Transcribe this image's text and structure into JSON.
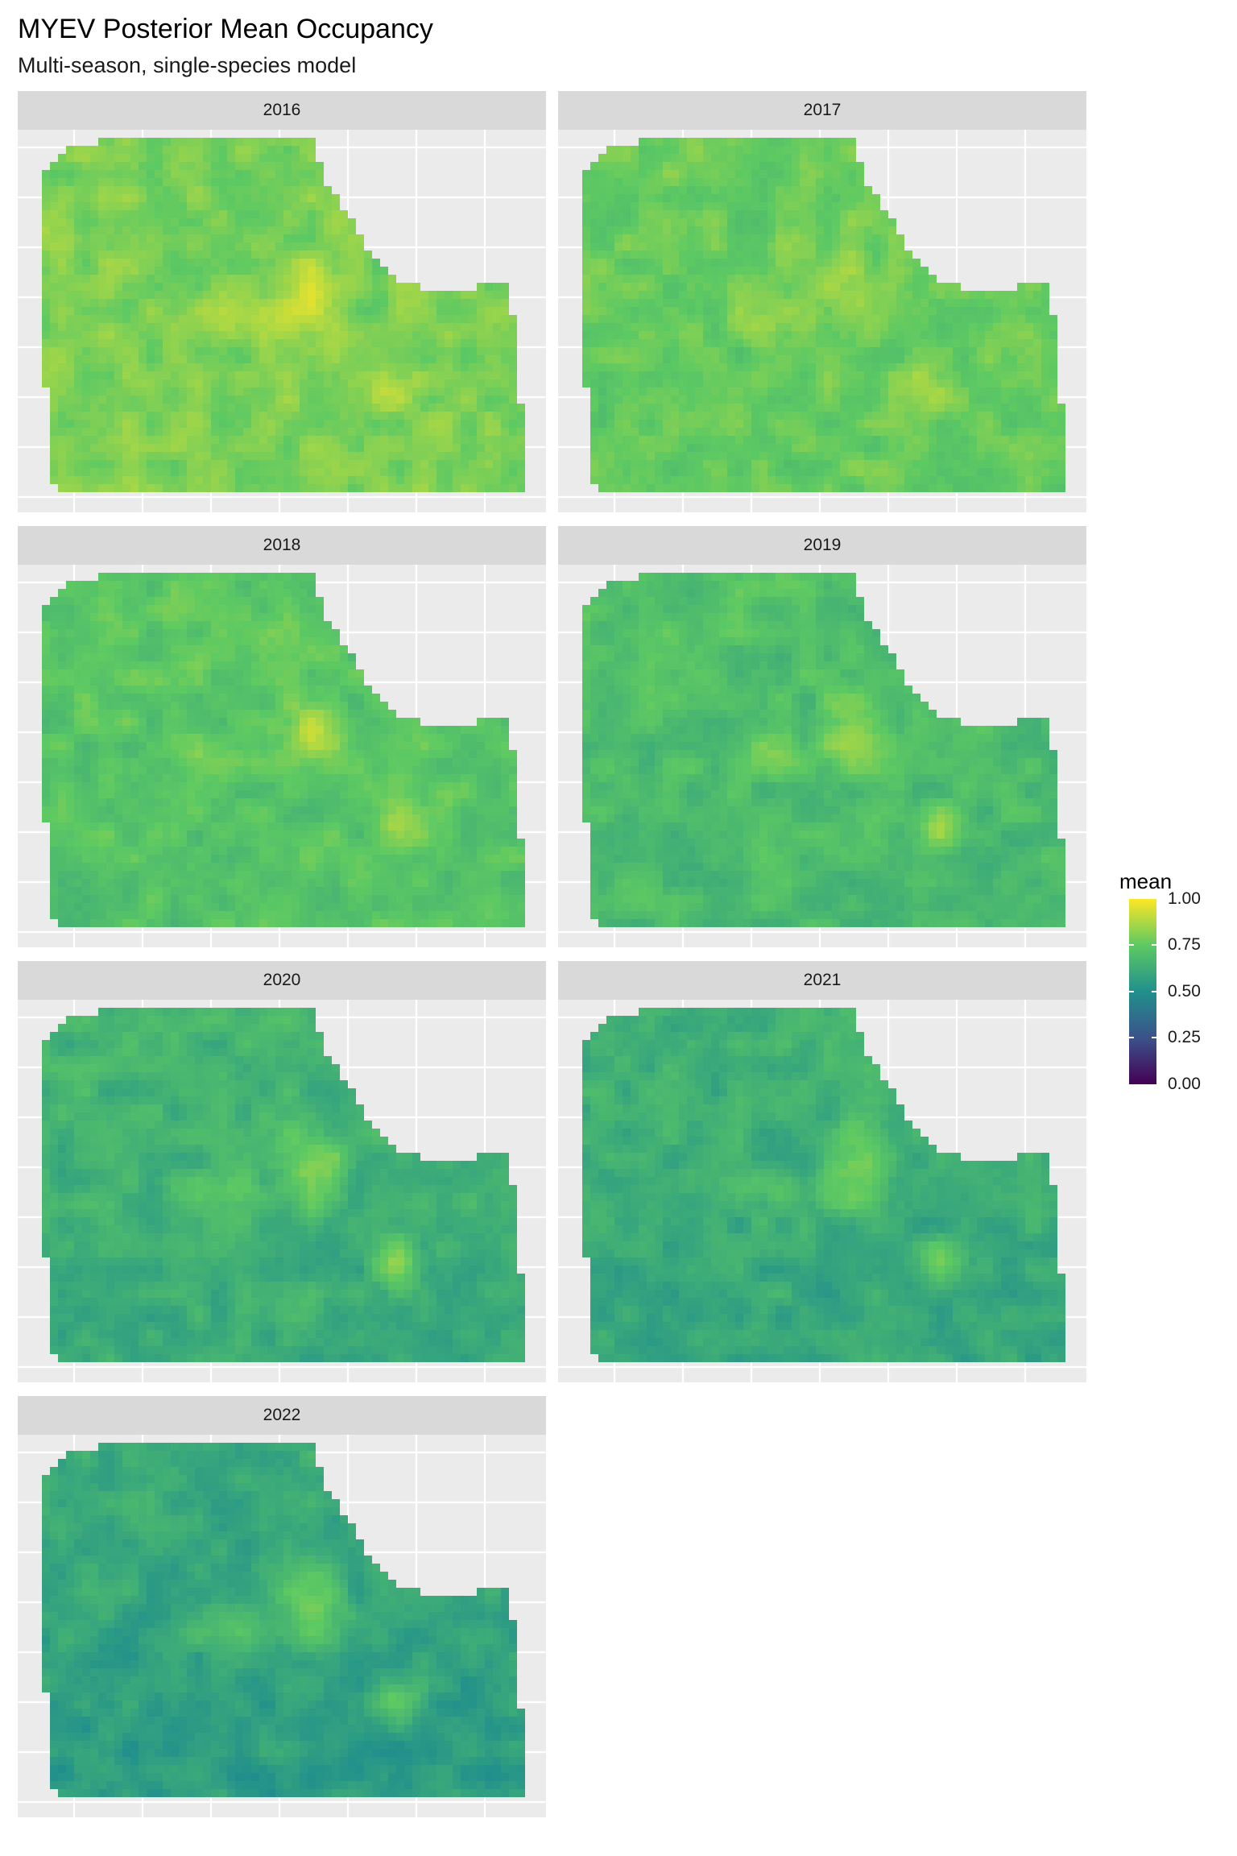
{
  "figure": {
    "title": "MYEV Posterior Mean Occupancy",
    "subtitle": "Multi-season, single-species model"
  },
  "chart_data": {
    "type": "heatmap",
    "title": "MYEV Posterior Mean Occupancy",
    "subtitle": "Multi-season, single-species model",
    "xlabel": "",
    "ylabel": "",
    "facets": [
      "2016",
      "2017",
      "2018",
      "2019",
      "2020",
      "2021",
      "2022"
    ],
    "fill_variable": "mean",
    "fill_scale": "viridis",
    "fill_range": [
      0,
      1
    ],
    "panel_mean_occupancy": [
      0.8,
      0.77,
      0.74,
      0.71,
      0.66,
      0.65,
      0.62
    ],
    "hotspot_occupancy": [
      0.95,
      0.92,
      0.92,
      0.9,
      0.9,
      0.89,
      0.88
    ],
    "grid": true,
    "axis_tick_labels_visible": false,
    "legend": {
      "title": "mean",
      "placement": "right",
      "ticks": [
        "1.00",
        "0.75",
        "0.50",
        "0.25",
        "0.00"
      ],
      "tick_values": [
        1.0,
        0.75,
        0.5,
        0.25,
        0.0
      ]
    },
    "colors": {
      "panel_background": "#ebebeb",
      "strip_background": "#d9d9d9",
      "gridline": "#ffffff",
      "viridis_stops": [
        "#440154",
        "#3b528b",
        "#21908c",
        "#5dc963",
        "#fde725"
      ]
    }
  }
}
